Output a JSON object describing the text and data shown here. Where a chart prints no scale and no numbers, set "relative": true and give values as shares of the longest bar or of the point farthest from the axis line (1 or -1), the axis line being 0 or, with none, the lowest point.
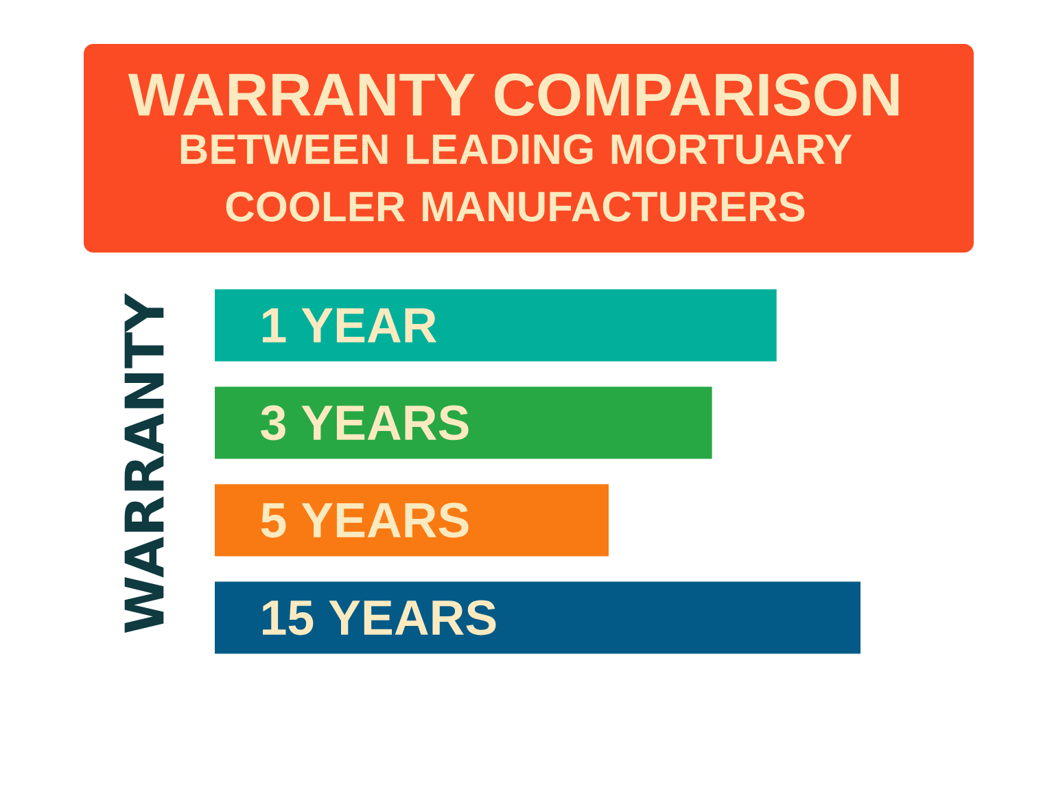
{
  "chart_data": {
    "type": "bar",
    "orientation": "horizontal",
    "relative": true,
    "title": "WARRANTY COMPARISON",
    "subtitle": "BETWEEN LEADING MORTUARY COOLER MANUFACTURERS",
    "ylabel": "WARRANTY",
    "categories": [
      "1 YEAR",
      "3 YEARS",
      "5 YEARS",
      "15 YEARS"
    ],
    "values": [
      0.87,
      0.77,
      0.61,
      1
    ],
    "colors": [
      "#00b09b",
      "#27a844",
      "#f97a12",
      "#045a87"
    ]
  }
}
